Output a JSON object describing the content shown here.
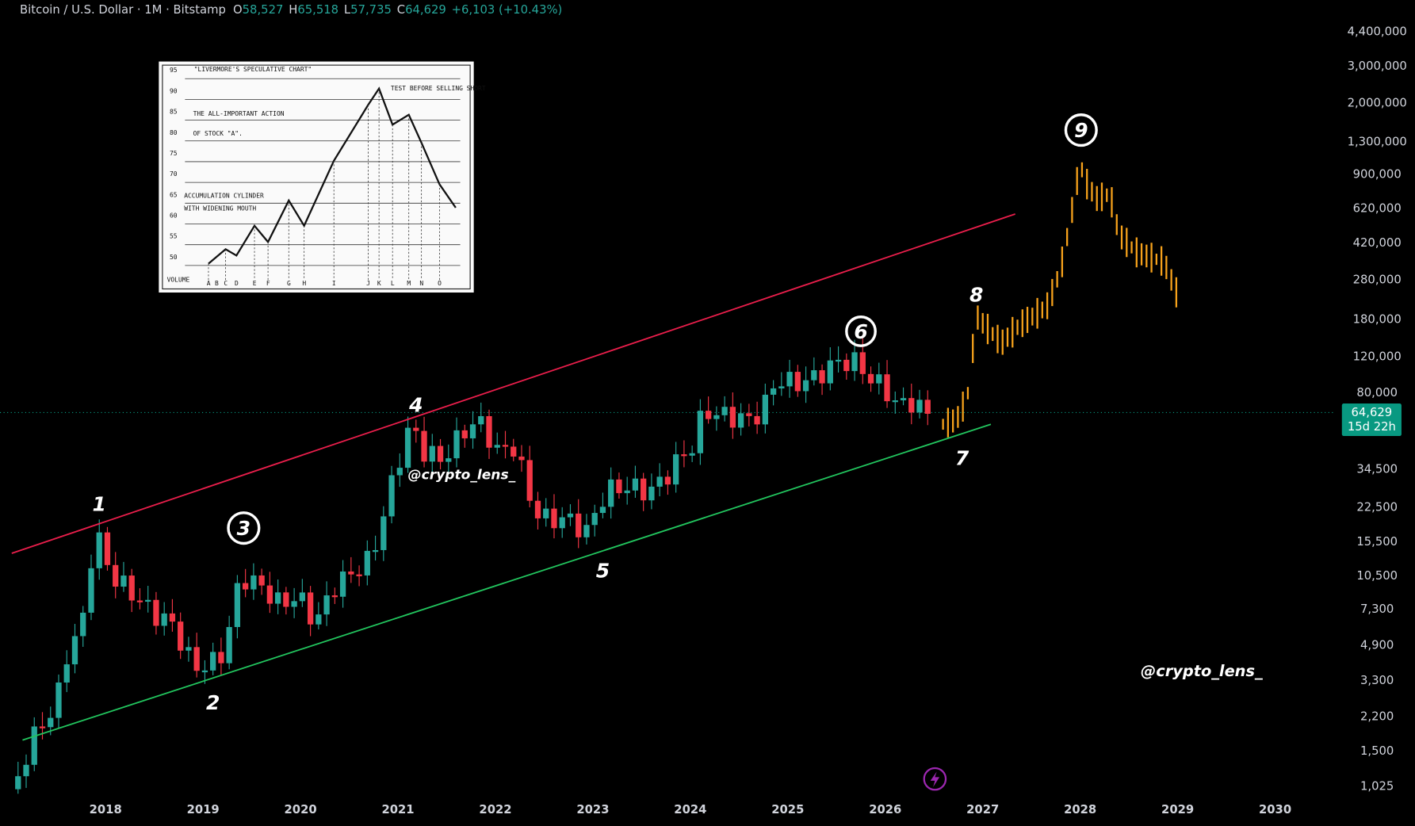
{
  "header": {
    "symbol": "Bitcoin / U.S. Dollar · 1M · Bitstamp",
    "open_label": "O",
    "open": "58,527",
    "high_label": "H",
    "high": "65,518",
    "low_label": "L",
    "low": "57,735",
    "close_label": "C",
    "close": "64,629",
    "change": "+6,103 (+10.43%)"
  },
  "price_axis": {
    "labels": [
      "4,400,000",
      "3,000,000",
      "2,000,000",
      "1,300,000",
      "900,000",
      "620,000",
      "420,000",
      "280,000",
      "180,000",
      "120,000",
      "80,000",
      "34,500",
      "22,500",
      "15,500",
      "10,500",
      "7,300",
      "4,900",
      "3,300",
      "2,200",
      "1,500",
      "1,025"
    ]
  },
  "time_axis": {
    "labels": [
      "2018",
      "2019",
      "2020",
      "2021",
      "2022",
      "2023",
      "2024",
      "2025",
      "2026",
      "2027",
      "2028",
      "2029",
      "2030"
    ]
  },
  "last_price": {
    "price": "64,629",
    "countdown": "15d 22h"
  },
  "annotations": {
    "waves": [
      "1",
      "2",
      "3",
      "4",
      "5",
      "6",
      "7",
      "8",
      "9"
    ],
    "watermarks": [
      "@crypto_lens_",
      "@crypto_lens_"
    ]
  },
  "inset": {
    "title": "\"LIVERMORE'S SPECULATIVE CHART\"",
    "note": "TEST BEFORE SELLING SHORT",
    "caption_1": "THE ALL-IMPORTANT ACTION",
    "caption_2": "OF STOCK \"A\".",
    "caption_3": "ACCUMULATION CYLINDER",
    "caption_4": "WITH WIDENING MOUTH",
    "levels": [
      "95",
      "90",
      "85",
      "80",
      "75",
      "70",
      "65",
      "60",
      "55",
      "50"
    ],
    "volume": "VOLUME",
    "letters": [
      "A",
      "B",
      "C",
      "D",
      "E",
      "F",
      "G",
      "H",
      "I",
      "J",
      "K",
      "L",
      "M",
      "N",
      "O"
    ]
  }
}
